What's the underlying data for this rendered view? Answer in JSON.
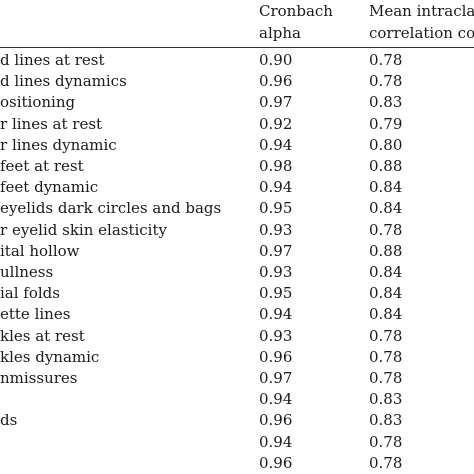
{
  "header": {
    "alpha_line1": "Cronbach",
    "alpha_line2": "alpha",
    "icc_line1": "Mean intracla",
    "icc_line2": "correlation co"
  },
  "rows": [
    {
      "label": "d lines at rest",
      "alpha": "0.90",
      "icc": "0.78"
    },
    {
      "label": "d lines dynamics",
      "alpha": "0.96",
      "icc": "0.78"
    },
    {
      "label": "ositioning",
      "alpha": "0.97",
      "icc": "0.83"
    },
    {
      "label": "r lines at rest",
      "alpha": "0.92",
      "icc": "0.79"
    },
    {
      "label": "r lines dynamic",
      "alpha": "0.94",
      "icc": "0.80"
    },
    {
      "label": "feet at rest",
      "alpha": "0.98",
      "icc": "0.88"
    },
    {
      "label": "feet dynamic",
      "alpha": "0.94",
      "icc": "0.84"
    },
    {
      "label": "eyelids dark circles and bags",
      "alpha": "0.95",
      "icc": "0.84"
    },
    {
      "label": "r eyelid skin elasticity",
      "alpha": "0.93",
      "icc": "0.78"
    },
    {
      "label": "ital hollow",
      "alpha": "0.97",
      "icc": "0.88"
    },
    {
      "label": "ullness",
      "alpha": "0.93",
      "icc": "0.84"
    },
    {
      "label": "ial folds",
      "alpha": "0.95",
      "icc": "0.84"
    },
    {
      "label": "ette lines",
      "alpha": "0.94",
      "icc": "0.84"
    },
    {
      "label": "kles at rest",
      "alpha": "0.93",
      "icc": "0.78"
    },
    {
      "label": "kles dynamic",
      "alpha": "0.96",
      "icc": "0.78"
    },
    {
      "label": "nmissures",
      "alpha": "0.97",
      "icc": "0.78"
    },
    {
      "label": "",
      "alpha": "0.94",
      "icc": "0.83"
    },
    {
      "label": "ds",
      "alpha": "0.96",
      "icc": "0.83"
    },
    {
      "label": "",
      "alpha": "0.94",
      "icc": "0.78"
    },
    {
      "label": "",
      "alpha": "0.96",
      "icc": "0.78"
    }
  ]
}
